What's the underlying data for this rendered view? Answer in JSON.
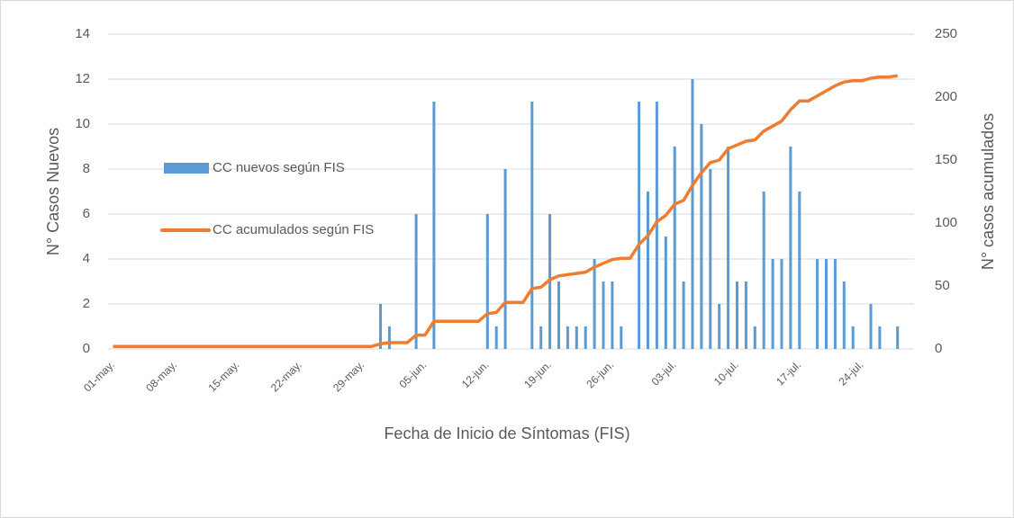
{
  "chart_data": {
    "type": "bar+line",
    "x_label": "Fecha de Inicio de Síntomas (FIS)",
    "y_label": "N° Casos Nuevos",
    "y2_label": "N° casos acumulados",
    "categories": [
      "01-may.",
      null,
      null,
      null,
      null,
      null,
      null,
      "08-may.",
      null,
      null,
      null,
      null,
      null,
      null,
      "15-may.",
      null,
      null,
      null,
      null,
      null,
      null,
      "22-may.",
      null,
      null,
      null,
      null,
      null,
      null,
      "29-may.",
      null,
      null,
      null,
      null,
      null,
      null,
      "05-jun.",
      null,
      null,
      null,
      null,
      null,
      null,
      "12-jun.",
      null,
      null,
      null,
      null,
      null,
      null,
      "19-jun.",
      null,
      null,
      null,
      null,
      null,
      null,
      "26-jun.",
      null,
      null,
      null,
      null,
      null,
      null,
      "03-jul.",
      null,
      null,
      null,
      null,
      null,
      null,
      "10-jul.",
      null,
      null,
      null,
      null,
      null,
      null,
      "17-jul.",
      null,
      null,
      null,
      null,
      null,
      null,
      "24-jul.",
      null,
      null,
      null,
      null
    ],
    "series": [
      {
        "name": "CC nuevos según FIS",
        "type": "bar",
        "color": "#5b9bd5",
        "values": [
          0,
          0,
          0,
          0,
          0,
          0,
          0,
          0,
          0,
          0,
          0,
          0,
          0,
          0,
          0,
          0,
          0,
          0,
          0,
          0,
          0,
          0,
          0,
          0,
          0,
          0,
          0,
          0,
          0,
          0,
          2,
          1,
          0,
          0,
          6,
          0,
          11,
          0,
          0,
          0,
          0,
          0,
          6,
          1,
          8,
          0,
          0,
          11,
          1,
          6,
          3,
          1,
          1,
          1,
          4,
          3,
          3,
          1,
          0,
          11,
          7,
          11,
          5,
          9,
          3,
          12,
          10,
          8,
          2,
          9,
          3,
          3,
          1,
          7,
          4,
          4,
          9,
          7,
          0,
          4,
          4,
          4,
          3,
          1,
          0,
          2,
          1,
          0,
          1
        ]
      },
      {
        "name": "CC acumulados según FIS",
        "type": "line",
        "axis": "y2",
        "color": "#ed7d31",
        "values": [
          2,
          2,
          2,
          2,
          2,
          2,
          2,
          2,
          2,
          2,
          2,
          2,
          2,
          2,
          2,
          2,
          2,
          2,
          2,
          2,
          2,
          2,
          2,
          2,
          2,
          2,
          2,
          2,
          2,
          2,
          4,
          5,
          5,
          5,
          11,
          11,
          22,
          22,
          22,
          22,
          22,
          22,
          28,
          29,
          37,
          37,
          37,
          48,
          49,
          55,
          58,
          59,
          60,
          61,
          65,
          68,
          71,
          72,
          72,
          83,
          90,
          101,
          106,
          115,
          118,
          130,
          140,
          148,
          150,
          159,
          162,
          165,
          166,
          173,
          177,
          181,
          190,
          197,
          197,
          201,
          205,
          209,
          212,
          213,
          213,
          215,
          216,
          216,
          217
        ]
      }
    ],
    "ylim": [
      0,
      14
    ],
    "yticks": [
      0,
      2,
      4,
      6,
      8,
      10,
      12,
      14
    ],
    "y2lim": [
      0,
      250
    ],
    "y2ticks": [
      0,
      50,
      100,
      150,
      200,
      250
    ],
    "grid": true
  }
}
